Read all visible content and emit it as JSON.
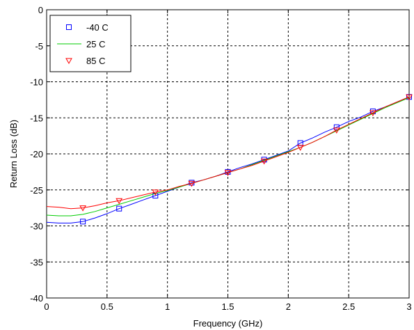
{
  "chart_data": {
    "type": "line",
    "title": "",
    "xlabel": "Frequency (GHz)",
    "ylabel": "Return Loss (dB)",
    "xlim": [
      0,
      3
    ],
    "ylim": [
      -40,
      0
    ],
    "xticks": [
      0,
      0.5,
      1,
      1.5,
      2,
      2.5,
      3
    ],
    "xtick_labels": [
      "0",
      "0.5",
      "1",
      "1.5",
      "2",
      "2.5",
      "3"
    ],
    "yticks": [
      0,
      -5,
      -10,
      -15,
      -20,
      -25,
      -30,
      -35,
      -40
    ],
    "ytick_labels": [
      "0",
      "-5",
      "-10",
      "-15",
      "-20",
      "-25",
      "-30",
      "-35",
      "-40"
    ],
    "grid": true,
    "legend_position": "top-left",
    "x": [
      0,
      0.1,
      0.2,
      0.3,
      0.4,
      0.5,
      0.6,
      0.7,
      0.8,
      0.9,
      1.0,
      1.1,
      1.2,
      1.3,
      1.4,
      1.5,
      1.6,
      1.7,
      1.8,
      1.9,
      2.0,
      2.1,
      2.2,
      2.3,
      2.4,
      2.5,
      2.6,
      2.7,
      2.8,
      2.9,
      3.0
    ],
    "series": [
      {
        "name": "-40 C",
        "color": "#0000ff",
        "marker": "square",
        "values": [
          -29.5,
          -29.6,
          -29.6,
          -29.4,
          -28.9,
          -28.3,
          -27.6,
          -27.0,
          -26.4,
          -25.8,
          -25.2,
          -24.6,
          -24.0,
          -23.6,
          -23.1,
          -22.5,
          -21.9,
          -21.4,
          -20.8,
          -20.2,
          -19.6,
          -18.5,
          -17.8,
          -17.0,
          -16.3,
          -15.5,
          -14.9,
          -14.1,
          -13.5,
          -12.8,
          -12.1
        ]
      },
      {
        "name": "25 C",
        "color": "#00cc00",
        "marker": "none",
        "values": [
          -28.5,
          -28.6,
          -28.6,
          -28.4,
          -28.0,
          -27.5,
          -27.0,
          -26.5,
          -26.0,
          -25.5,
          -25.1,
          -24.6,
          -24.1,
          -23.6,
          -23.1,
          -22.6,
          -22.1,
          -21.5,
          -20.9,
          -20.3,
          -19.7,
          -19.1,
          -18.4,
          -17.6,
          -16.8,
          -16.0,
          -15.2,
          -14.4,
          -13.6,
          -12.9,
          -12.2
        ]
      },
      {
        "name": "85 C",
        "color": "#ff0000",
        "marker": "triangle-down",
        "values": [
          -27.3,
          -27.4,
          -27.6,
          -27.5,
          -27.2,
          -26.8,
          -26.5,
          -26.1,
          -25.7,
          -25.3,
          -25.0,
          -24.5,
          -24.1,
          -23.6,
          -23.1,
          -22.6,
          -22.1,
          -21.6,
          -21.0,
          -20.4,
          -19.8,
          -19.1,
          -18.4,
          -17.6,
          -16.7,
          -15.9,
          -15.1,
          -14.3,
          -13.5,
          -12.8,
          -12.1
        ]
      }
    ],
    "marker_x": [
      0.3,
      0.6,
      0.9,
      1.2,
      1.5,
      1.8,
      2.1,
      2.4,
      2.7,
      3.0
    ]
  }
}
